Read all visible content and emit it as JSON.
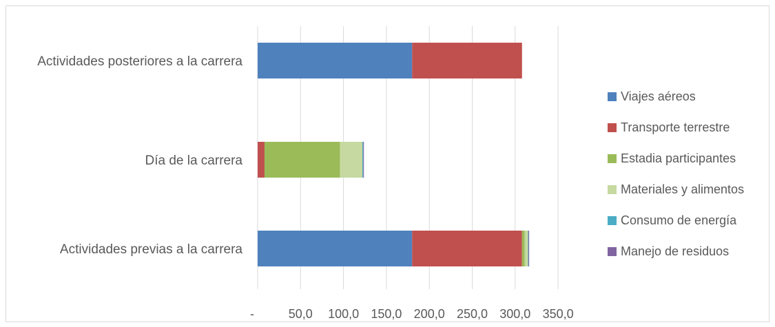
{
  "chart_data": {
    "type": "bar",
    "orientation": "horizontal",
    "stacked": true,
    "title": "",
    "xlabel": "",
    "ylabel": "",
    "categories": [
      "Actividades posteriores a la carrera",
      "Día de la carrera",
      "Actividades previas a la carrera"
    ],
    "series": [
      {
        "name": "Viajes aéreos",
        "color": "#4f81bd",
        "values": [
          180,
          0,
          180
        ]
      },
      {
        "name": "Transporte terrestre",
        "color": "#c0504d",
        "values": [
          128,
          8,
          128
        ]
      },
      {
        "name": "Estadia participantes",
        "color": "#9bbb59",
        "values": [
          0,
          88,
          3
        ]
      },
      {
        "name": "Materiales y alimentos",
        "color": "#c5d9a0",
        "values": [
          0,
          26,
          4
        ]
      },
      {
        "name": "Consumo de energía",
        "color": "#4bacc6",
        "values": [
          0,
          1,
          0.5
        ]
      },
      {
        "name": "Manejo de residuos",
        "color": "#8064a2",
        "values": [
          0,
          0.3,
          0.3
        ]
      }
    ],
    "xlim": [
      0,
      350
    ],
    "xticks": [
      0,
      50,
      100,
      150,
      200,
      250,
      300,
      350
    ],
    "xtick_labels": [
      "-",
      "50,0",
      "100,0",
      "150,0",
      "200,0",
      "250,0",
      "300,0",
      "350,0"
    ],
    "grid": true,
    "legend_position": "right"
  }
}
